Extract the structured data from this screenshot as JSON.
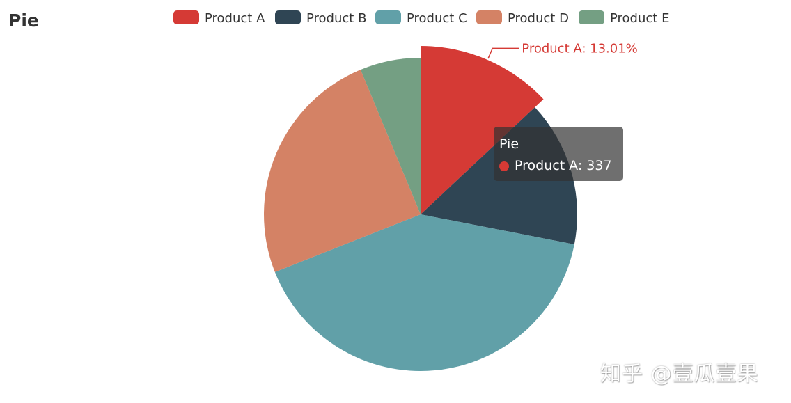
{
  "title": "Pie",
  "colors": {
    "Product A": "#d53a35",
    "Product B": "#2f4554",
    "Product C": "#61a0a8",
    "Product D": "#d48265",
    "Product E": "#749f83"
  },
  "chart_data": {
    "type": "pie",
    "title": "Pie",
    "series_name": "Pie",
    "categories": [
      "Product A",
      "Product B",
      "Product C",
      "Product D",
      "Product E"
    ],
    "values": [
      337,
      390,
      1060,
      641,
      162
    ],
    "percentages": {
      "Product A": "13.01%"
    },
    "legend": {
      "placement": "top-center"
    },
    "highlighted": "Product A",
    "label_text": "Product A: 13.01%"
  },
  "tooltip": {
    "title": "Pie",
    "item_text": "Product A: 337"
  },
  "watermark": "知乎 @壹瓜壹果"
}
